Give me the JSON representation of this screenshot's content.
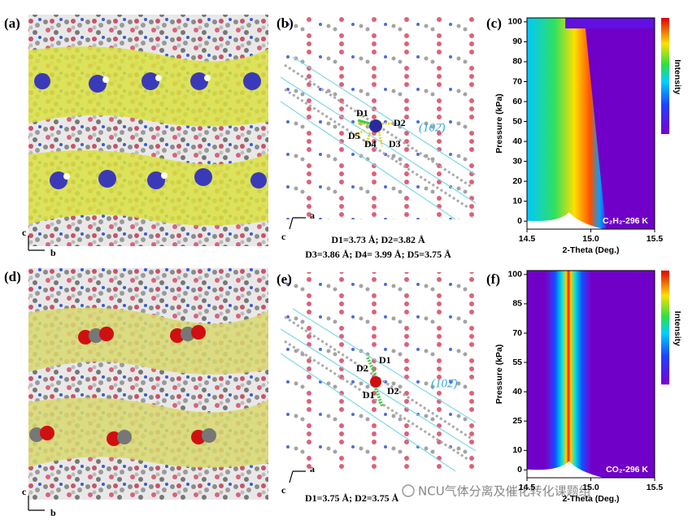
{
  "panels": [
    {
      "label": "(a)",
      "axes": [
        "c",
        "b"
      ]
    },
    {
      "label": "(b)",
      "axes": [
        "a",
        "c"
      ],
      "annotations": [
        "D1",
        "D2",
        "D3",
        "D4",
        "D5",
        "(102̄)"
      ],
      "caption": [
        "D1=3.73 Å; D2=3.82 Å",
        "D3=3.86 Å; D4= 3.99 Å; D5=3.75 Å"
      ]
    },
    {
      "label": "(c)"
    },
    {
      "label": "(d)",
      "axes": [
        "c",
        "b"
      ]
    },
    {
      "label": "(e)",
      "axes": [
        "a",
        "c"
      ],
      "annotations": [
        "D1",
        "D2",
        "D1",
        "D2",
        "(102̄)"
      ],
      "caption": [
        "D1=3.75 Å; D2=3.75 Å"
      ]
    },
    {
      "label": "(f)"
    }
  ],
  "chart_data": [
    {
      "type": "heatmap",
      "xlabel": "2-Theta (Deg.)",
      "ylabel": "Pressure (kPa)",
      "colorbar_label": "Intensity",
      "annotation": "C₂H₂-296 K",
      "xlim": [
        14.5,
        15.5
      ],
      "xticks": [
        14.5,
        {
          "value": 15,
          "label": "15.0"
        },
        15.5
      ],
      "ylim": [
        -4,
        102
      ],
      "yticks": [
        0,
        10,
        20,
        30,
        40,
        50,
        60,
        70,
        80,
        90,
        100
      ]
    },
    {
      "type": "heatmap",
      "xlabel": "2-Theta (Deg.)",
      "ylabel": "Pressure (kPa)",
      "colorbar_label": "Intensity",
      "annotation": "CO₂-296 K",
      "xlim": [
        14.5,
        15.5
      ],
      "xticks": [
        14.5,
        {
          "value": 15,
          "label": "15.0"
        },
        15.5
      ],
      "ylim": [
        -4,
        102
      ],
      "yticks": [
        0,
        10,
        25,
        40,
        55,
        70,
        85,
        100
      ]
    }
  ],
  "watermark": "NCU气体分离及催化转化课题组"
}
